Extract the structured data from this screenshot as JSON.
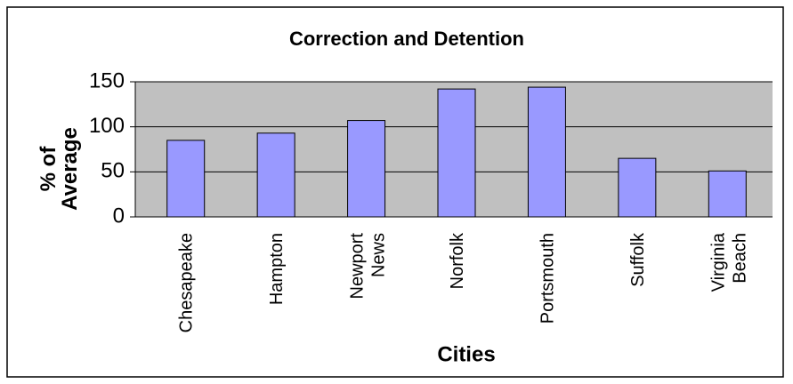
{
  "chart_data": {
    "type": "bar",
    "title": "Correction and Detention",
    "x_label": "Cities",
    "y_label": "% of Average",
    "categories": [
      "Chesapeake",
      "Hampton",
      "Newport News",
      "Norfolk",
      "Portsmouth",
      "Suffolk",
      "Virginia Beach"
    ],
    "values": [
      85,
      93,
      107,
      142,
      144,
      65,
      51
    ],
    "color": "#9999ff",
    "ylim": [
      0,
      150
    ],
    "yticks": [
      0,
      50,
      100,
      150
    ],
    "grid": true
  }
}
